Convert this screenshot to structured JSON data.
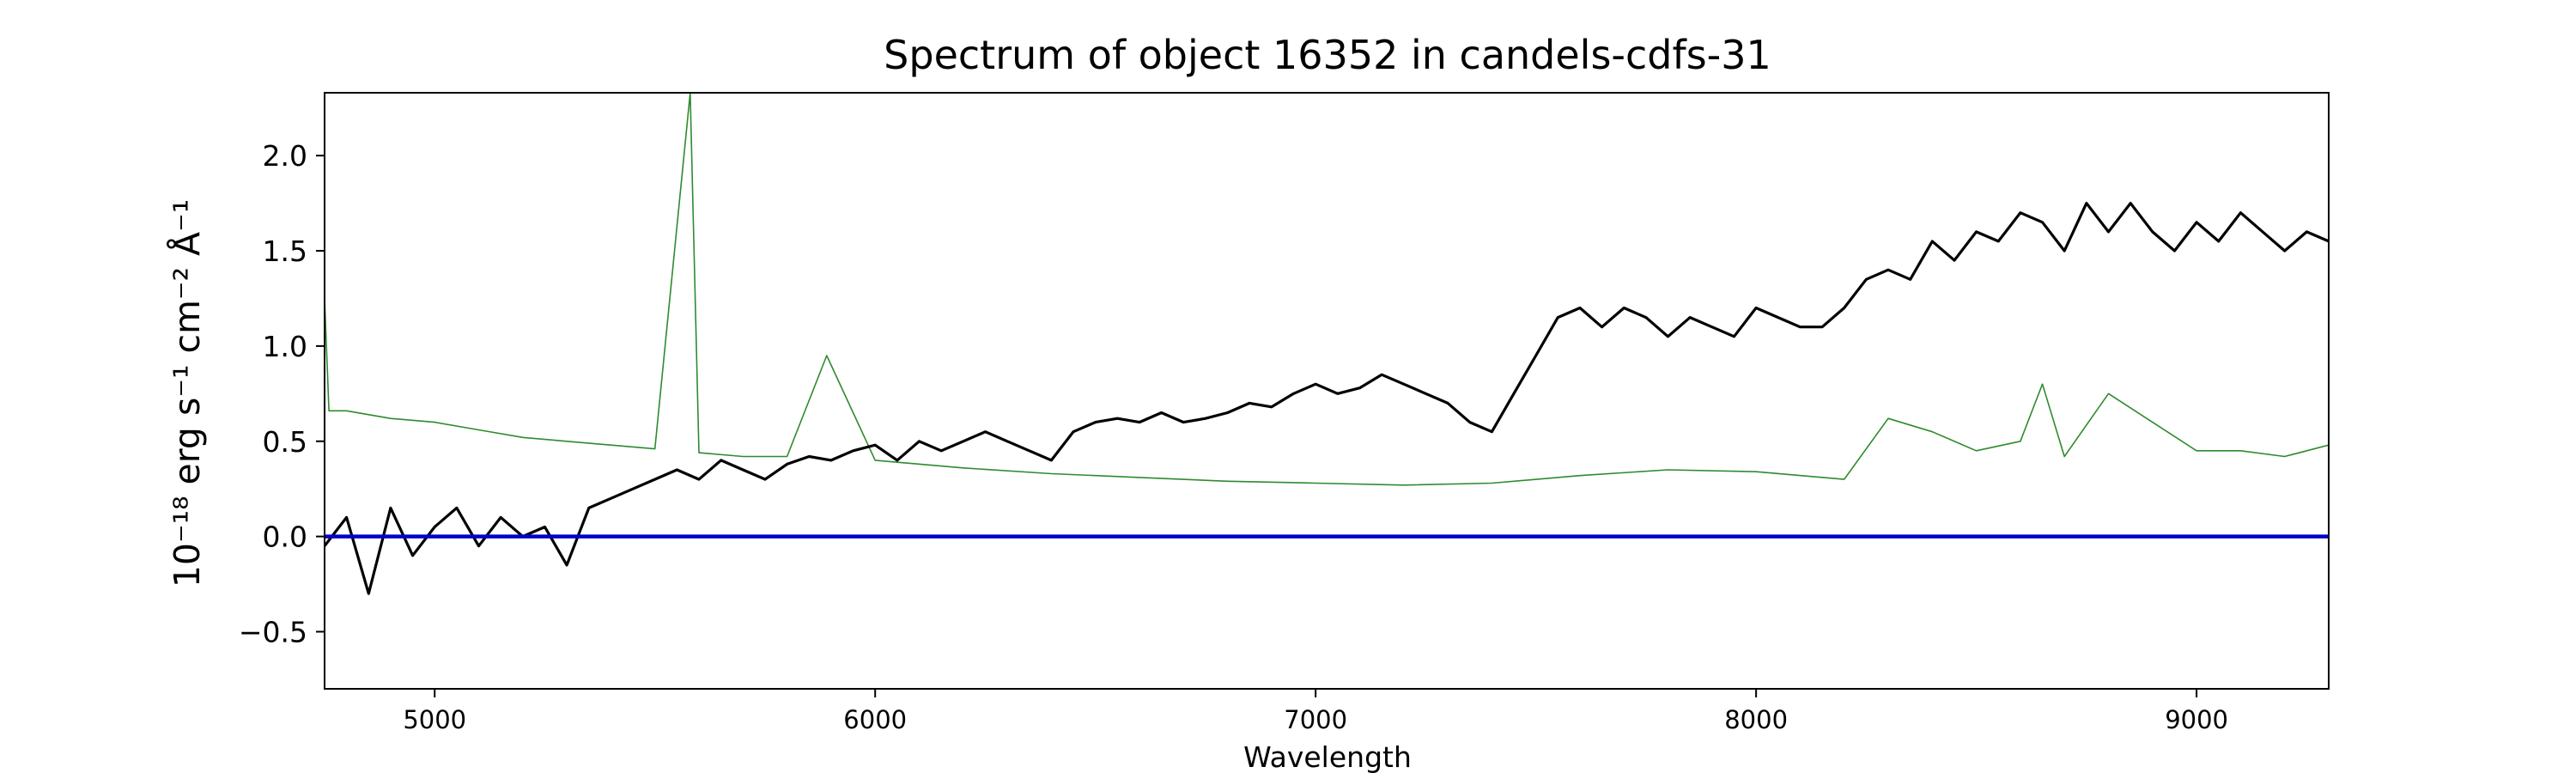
{
  "chart_data": {
    "type": "line",
    "title": "Spectrum of object 16352 in candels-cdfs-31",
    "xlabel": "Wavelength",
    "ylabel": "10⁻¹⁸ erg s⁻¹ cm⁻² Å⁻¹",
    "xlim": [
      4750,
      9300
    ],
    "ylim": [
      -0.8,
      2.33
    ],
    "x_ticks": [
      5000,
      6000,
      7000,
      8000,
      9000
    ],
    "y_ticks": [
      -0.5,
      0.0,
      0.5,
      1.0,
      1.5,
      2.0
    ],
    "x_tick_labels": [
      "5000",
      "6000",
      "7000",
      "8000",
      "9000"
    ],
    "y_tick_labels": [
      "−0.5",
      "0.0",
      "0.5",
      "1.0",
      "1.5",
      "2.0"
    ],
    "grid": false,
    "series": [
      {
        "role": "flux",
        "color": "#000000",
        "x": [
          4750,
          4800,
          4850,
          4900,
          4950,
          5000,
          5050,
          5100,
          5150,
          5200,
          5250,
          5300,
          5350,
          5400,
          5450,
          5500,
          5550,
          5600,
          5650,
          5700,
          5750,
          5800,
          5850,
          5900,
          5950,
          6000,
          6050,
          6100,
          6150,
          6200,
          6250,
          6300,
          6350,
          6400,
          6450,
          6500,
          6550,
          6600,
          6650,
          6700,
          6750,
          6800,
          6850,
          6900,
          6950,
          7000,
          7050,
          7100,
          7150,
          7200,
          7250,
          7300,
          7350,
          7400,
          7450,
          7500,
          7550,
          7600,
          7650,
          7700,
          7750,
          7800,
          7850,
          7900,
          7950,
          8000,
          8050,
          8100,
          8150,
          8200,
          8250,
          8300,
          8350,
          8400,
          8450,
          8500,
          8550,
          8600,
          8650,
          8700,
          8750,
          8800,
          8850,
          8900,
          8950,
          9000,
          9050,
          9100,
          9150,
          9200,
          9250,
          9300
        ],
        "y": [
          -0.05,
          0.1,
          -0.3,
          0.15,
          -0.1,
          0.05,
          0.15,
          -0.05,
          0.1,
          0.0,
          0.05,
          -0.15,
          0.15,
          0.2,
          0.25,
          0.3,
          0.35,
          0.3,
          0.4,
          0.35,
          0.3,
          0.38,
          0.42,
          0.4,
          0.45,
          0.48,
          0.4,
          0.5,
          0.45,
          0.5,
          0.55,
          0.5,
          0.45,
          0.4,
          0.55,
          0.6,
          0.62,
          0.6,
          0.65,
          0.6,
          0.62,
          0.65,
          0.7,
          0.68,
          0.75,
          0.8,
          0.75,
          0.78,
          0.85,
          0.8,
          0.75,
          0.7,
          0.6,
          0.55,
          0.75,
          0.95,
          1.15,
          1.2,
          1.1,
          1.2,
          1.15,
          1.05,
          1.15,
          1.1,
          1.05,
          1.2,
          1.15,
          1.1,
          1.1,
          1.2,
          1.35,
          1.4,
          1.35,
          1.55,
          1.45,
          1.6,
          1.55,
          1.7,
          1.65,
          1.5,
          1.75,
          1.6,
          1.75,
          1.6,
          1.5,
          1.65,
          1.55,
          1.7,
          1.6,
          1.5,
          1.6,
          1.55
        ]
      },
      {
        "role": "error",
        "color": "#2e8b2e",
        "x": [
          4750,
          4760,
          4800,
          4900,
          5000,
          5100,
          5200,
          5300,
          5400,
          5500,
          5580,
          5600,
          5700,
          5800,
          5890,
          6000,
          6200,
          6400,
          6600,
          6800,
          7000,
          7200,
          7400,
          7600,
          7800,
          8000,
          8200,
          8300,
          8400,
          8500,
          8600,
          8650,
          8700,
          8800,
          8900,
          9000,
          9100,
          9200,
          9300
        ],
        "y": [
          1.25,
          0.66,
          0.66,
          0.62,
          0.6,
          0.56,
          0.52,
          0.5,
          0.48,
          0.46,
          2.33,
          0.44,
          0.42,
          0.42,
          0.95,
          0.4,
          0.36,
          0.33,
          0.31,
          0.29,
          0.28,
          0.27,
          0.28,
          0.32,
          0.35,
          0.34,
          0.3,
          0.62,
          0.55,
          0.45,
          0.5,
          0.8,
          0.42,
          0.75,
          0.6,
          0.45,
          0.45,
          0.42,
          0.48
        ]
      },
      {
        "role": "zero-line",
        "color": "#0000cc",
        "x": [
          4750,
          9300
        ],
        "y": [
          0.0,
          0.0
        ]
      }
    ]
  }
}
